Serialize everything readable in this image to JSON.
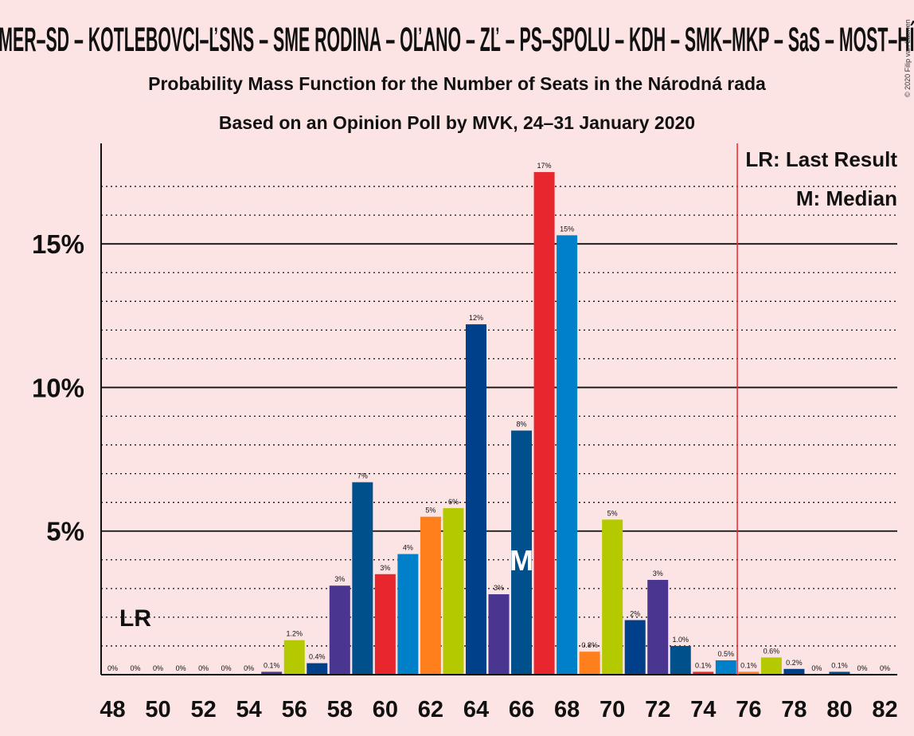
{
  "chart_data": {
    "type": "bar",
    "title": "SMER–SD – KOTLEBOVCI–ĽSNS – SME RODINA – OĽANO – ZĽ – PS–SPOLU – KDH – SMK–MKP – SaS – MOST–HÍD",
    "subtitle": "Probability Mass Function for the Number of Seats in the Národná rada",
    "subtitle2": "Based on an Opinion Poll by MVK, 24–31 January 2020",
    "copyright": "© 2020 Filip van Laenen",
    "xlabel": "",
    "ylabel": "",
    "ylim": [
      0,
      18.5
    ],
    "y_ticks": [
      {
        "value": 5,
        "label": "5%"
      },
      {
        "value": 10,
        "label": "10%"
      },
      {
        "value": 15,
        "label": "15%"
      }
    ],
    "x_tick_labels": [
      "48",
      "50",
      "52",
      "54",
      "56",
      "58",
      "60",
      "62",
      "64",
      "66",
      "68",
      "70",
      "72",
      "74",
      "76",
      "78",
      "80",
      "82"
    ],
    "categories": [
      48,
      49,
      50,
      51,
      52,
      53,
      54,
      55,
      56,
      57,
      58,
      59,
      60,
      61,
      62,
      63,
      64,
      65,
      66,
      67,
      68,
      69,
      70,
      71,
      72,
      73,
      74,
      75,
      76,
      77,
      78,
      79,
      80,
      81,
      82
    ],
    "values": [
      0,
      0,
      0,
      0,
      0,
      0,
      0,
      0.1,
      1.2,
      0.4,
      3.1,
      6.7,
      3.5,
      4.2,
      5.5,
      5.8,
      12.2,
      2.8,
      8.5,
      17.5,
      15.3,
      0.8,
      5.4,
      1.9,
      3.3,
      1.0,
      0.1,
      0.5,
      0.1,
      0.6,
      0.2,
      0,
      0.1,
      0,
      0
    ],
    "value_labels": [
      "0%",
      "0%",
      "0%",
      "0%",
      "0%",
      "0%",
      "0%",
      "0.1%",
      "1.2%",
      "0.4%",
      "3%",
      "7%",
      "3%",
      "4%",
      "5%",
      "6%",
      "12%",
      "3%",
      "8%",
      "17%",
      "15%",
      "0.8%",
      "5%",
      "2%",
      "3%",
      "1.0%",
      "0.1%",
      "0.5%",
      "0.1%",
      "0.6%",
      "0.2%",
      "0%",
      "0.1%",
      "0%",
      "0%"
    ],
    "bar_colors": [
      "#e8262d",
      "#4a3590",
      "#e8262d",
      "#0080c8",
      "#ff7f1c",
      "#b5c900",
      "#003f8a",
      "#4a3590",
      "#b5c900",
      "#003f8a",
      "#4a3590",
      "#00508c",
      "#e8262d",
      "#0080c8",
      "#ff7f1c",
      "#b5c900",
      "#003f8a",
      "#4a3590",
      "#00508c",
      "#e8262d",
      "#0080c8",
      "#ff7f1c",
      "#b5c900",
      "#003f8a",
      "#4a3590",
      "#00508c",
      "#e8262d",
      "#0080c8",
      "#ff7f1c",
      "#b5c900",
      "#003f8a",
      "#4a3590",
      "#00508c",
      "#e8262d",
      "#0080c8"
    ],
    "median_seat": 66,
    "median_marker": "M",
    "last_result_seat": 49,
    "last_result_marker": "LR",
    "majority_line_seat": 76,
    "majority_line_color": "#e8262d",
    "legend": [
      {
        "label": "LR: Last Result"
      },
      {
        "label": "M: Median"
      }
    ],
    "legend_position": "top-right",
    "grid": true
  }
}
